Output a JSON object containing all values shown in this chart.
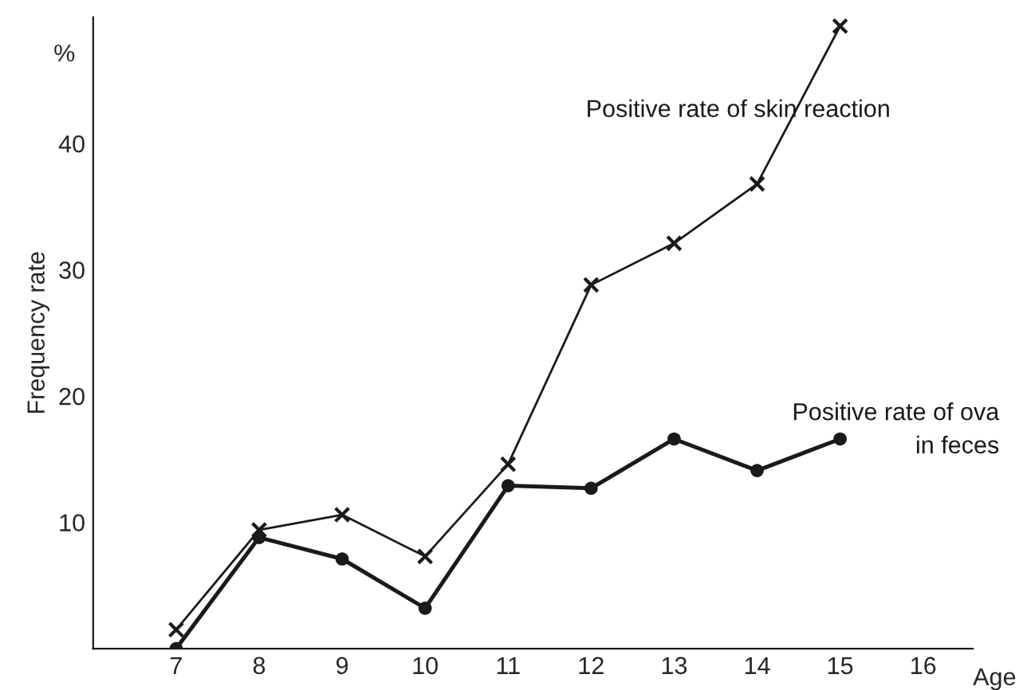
{
  "chart_data": {
    "type": "line",
    "xlabel": "Age",
    "ylabel": "Frequency rate",
    "annotations": [
      "%"
    ],
    "x": [
      7,
      8,
      9,
      10,
      11,
      12,
      13,
      14,
      15
    ],
    "series": [
      {
        "name": "Positive rate of skin reaction",
        "color": "#1a1a1a",
        "marker": "cross",
        "values": [
          1.5,
          9.4,
          10.6,
          7.3,
          14.6,
          28.8,
          32.1,
          36.8,
          49.3
        ]
      },
      {
        "name": "Positive rate of ova\nin feces",
        "color": "#1a1a1a",
        "marker": "circle",
        "values": [
          0,
          8.8,
          7.1,
          3.2,
          12.9,
          12.7,
          16.6,
          14.1,
          16.6
        ]
      }
    ],
    "xlim": [
      6,
      16.6
    ],
    "ylim": [
      0,
      50
    ],
    "xticks": [
      7,
      8,
      9,
      10,
      11,
      12,
      13,
      14,
      15,
      16
    ],
    "yticks": [
      10,
      20,
      30,
      40
    ],
    "grid": false,
    "legend": false
  }
}
